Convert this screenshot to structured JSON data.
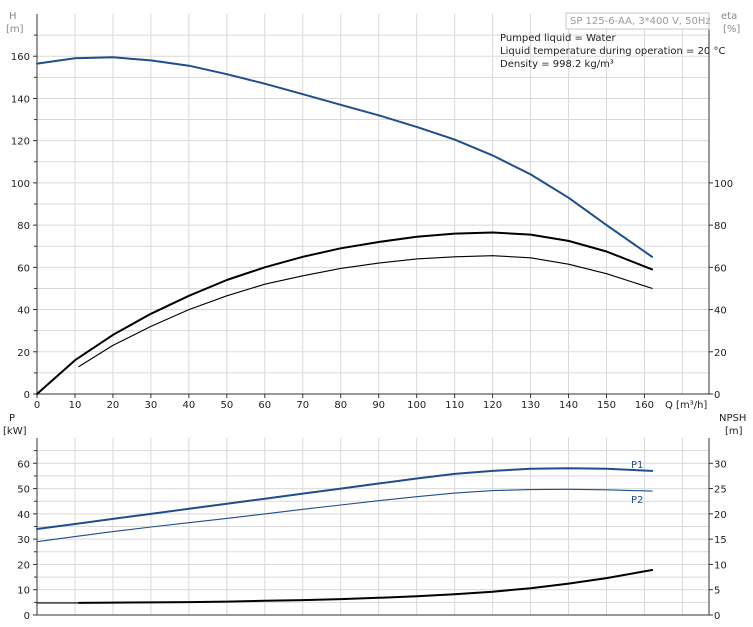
{
  "chart_data": [
    {
      "type": "line",
      "title": "SP 125-6-AA, 3*400 V, 50Hz",
      "info_lines": [
        "Pumped liquid = Water",
        "Liquid temperature during operation = 20 °C",
        "Density = 998.2 kg/m³"
      ],
      "xlabel": "Q [m³/h]",
      "x_ticks": [
        0,
        10,
        20,
        30,
        40,
        50,
        60,
        70,
        80,
        90,
        100,
        110,
        120,
        130,
        140,
        150,
        160
      ],
      "xlim": [
        0,
        177
      ],
      "y_left": {
        "label": "H",
        "unit": "[m]",
        "ticks": [
          0,
          20,
          40,
          60,
          80,
          100,
          120,
          140,
          160
        ],
        "ylim": [
          0,
          180
        ]
      },
      "y_right": {
        "label": "eta",
        "unit": "[%]",
        "ticks": [
          0,
          20,
          40,
          60,
          80,
          100
        ],
        "ylim": [
          0,
          180
        ]
      },
      "grid": true,
      "series": [
        {
          "color": "#1f4e8c",
          "axis": "left",
          "x": [
            0,
            10,
            20,
            30,
            40,
            50,
            60,
            70,
            80,
            90,
            100,
            110,
            120,
            130,
            140,
            150,
            162
          ],
          "y": [
            156.5,
            159,
            159.5,
            158,
            155.5,
            151.5,
            147,
            142,
            137,
            132,
            126.5,
            120.5,
            113,
            104,
            93,
            80,
            65
          ]
        },
        {
          "color": "#000000",
          "axis": "right",
          "x": [
            0,
            10,
            20,
            30,
            40,
            50,
            60,
            70,
            80,
            90,
            100,
            110,
            120,
            130,
            140,
            150,
            162
          ],
          "y": [
            0,
            16,
            28,
            38,
            46.5,
            54,
            60,
            65,
            69,
            72,
            74.5,
            76,
            76.5,
            75.5,
            72.5,
            67.5,
            59
          ]
        },
        {
          "color": "#000000",
          "axis": "right",
          "x": [
            11,
            20,
            30,
            40,
            50,
            60,
            70,
            80,
            90,
            100,
            110,
            120,
            130,
            140,
            150,
            162
          ],
          "y": [
            13,
            23,
            32,
            40,
            46.5,
            52,
            56,
            59.5,
            62,
            64,
            65,
            65.5,
            64.5,
            61.5,
            57,
            50
          ]
        }
      ]
    },
    {
      "type": "line",
      "xlim": [
        0,
        177
      ],
      "y_left": {
        "label": "P",
        "unit": "[kW]",
        "ticks": [
          0,
          10,
          20,
          30,
          40,
          50,
          60
        ],
        "ylim": [
          0,
          70
        ]
      },
      "y_right": {
        "label": "NPSH",
        "unit": "[m]",
        "ticks": [
          0,
          5,
          10,
          15,
          20,
          25,
          30
        ],
        "ylim": [
          0,
          35
        ]
      },
      "grid": true,
      "series": [
        {
          "name": "P1",
          "color": "#1f4e8c",
          "axis": "left",
          "x": [
            0,
            10,
            20,
            30,
            40,
            50,
            60,
            70,
            80,
            90,
            100,
            110,
            120,
            130,
            140,
            150,
            162
          ],
          "y": [
            34,
            36,
            38,
            40,
            42,
            44,
            46,
            48,
            50,
            52,
            54,
            55.8,
            57,
            57.8,
            58,
            57.8,
            57
          ]
        },
        {
          "name": "P2",
          "color": "#1f4e8c",
          "axis": "left",
          "x": [
            0,
            10,
            20,
            30,
            40,
            50,
            60,
            70,
            80,
            90,
            100,
            110,
            120,
            130,
            140,
            150,
            162
          ],
          "y": [
            29,
            31,
            33,
            34.8,
            36.5,
            38.2,
            40,
            41.8,
            43.5,
            45.2,
            46.8,
            48.2,
            49.2,
            49.6,
            49.7,
            49.5,
            49
          ]
        },
        {
          "color": "#000000",
          "axis": "right",
          "x": [
            11,
            20,
            30,
            40,
            50,
            60,
            70,
            80,
            90,
            100,
            110,
            120,
            130,
            140,
            150,
            162
          ],
          "y": [
            2.4,
            2.45,
            2.5,
            2.55,
            2.65,
            2.8,
            2.95,
            3.15,
            3.4,
            3.7,
            4.1,
            4.6,
            5.3,
            6.2,
            7.3,
            8.9
          ]
        },
        {
          "color": "#000000",
          "axis": "right",
          "x": [
            0,
            11
          ],
          "y": [
            2.4,
            2.4
          ]
        }
      ]
    }
  ]
}
